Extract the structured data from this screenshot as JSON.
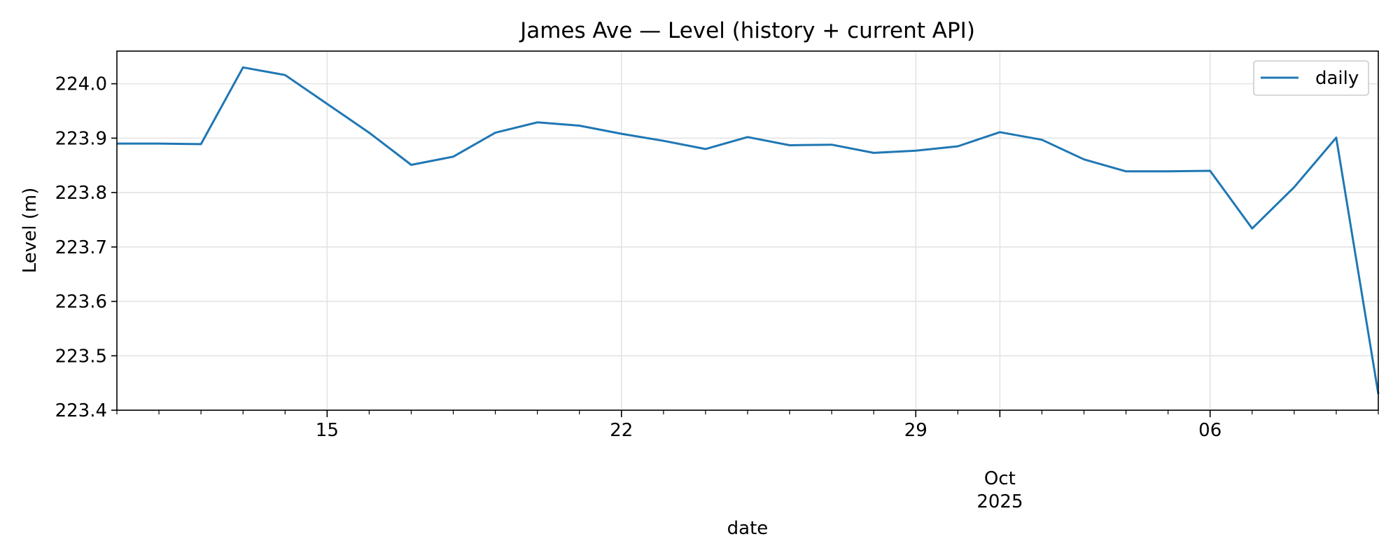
{
  "chart_data": {
    "type": "line",
    "title": "James Ave — Level (history + current API)",
    "xlabel": "date",
    "ylabel": "Level (m)",
    "xlim": [
      "2025-09-10",
      "2025-10-10"
    ],
    "ylim": [
      223.4,
      224.06
    ],
    "yticks": [
      "223.4",
      "223.5",
      "223.6",
      "223.7",
      "223.8",
      "223.9",
      "224.0"
    ],
    "xticks": [
      {
        "date": "2025-09-15",
        "label": "15"
      },
      {
        "date": "2025-09-22",
        "label": "22"
      },
      {
        "date": "2025-09-29",
        "label": "29"
      },
      {
        "date": "2025-10-01",
        "label": "Oct\n2025"
      },
      {
        "date": "2025-10-06",
        "label": "06"
      }
    ],
    "grid": true,
    "legend": {
      "position": "top-right",
      "entries": [
        "daily"
      ]
    },
    "series": [
      {
        "name": "daily",
        "color": "#1f77b4",
        "x": [
          "2025-09-10",
          "2025-09-11",
          "2025-09-12",
          "2025-09-13",
          "2025-09-14",
          "2025-09-15",
          "2025-09-16",
          "2025-09-17",
          "2025-09-18",
          "2025-09-19",
          "2025-09-20",
          "2025-09-21",
          "2025-09-22",
          "2025-09-23",
          "2025-09-24",
          "2025-09-25",
          "2025-09-26",
          "2025-09-27",
          "2025-09-28",
          "2025-09-29",
          "2025-09-30",
          "2025-10-01",
          "2025-10-02",
          "2025-10-03",
          "2025-10-04",
          "2025-10-05",
          "2025-10-06",
          "2025-10-07",
          "2025-10-08",
          "2025-10-09",
          "2025-10-10"
        ],
        "values": [
          223.89,
          223.89,
          223.889,
          224.03,
          224.016,
          223.963,
          223.91,
          223.851,
          223.866,
          223.91,
          223.929,
          223.923,
          223.908,
          223.895,
          223.88,
          223.902,
          223.887,
          223.888,
          223.873,
          223.877,
          223.885,
          223.911,
          223.897,
          223.861,
          223.839,
          223.839,
          223.84,
          223.734,
          223.81,
          223.901,
          223.43
        ]
      }
    ]
  }
}
